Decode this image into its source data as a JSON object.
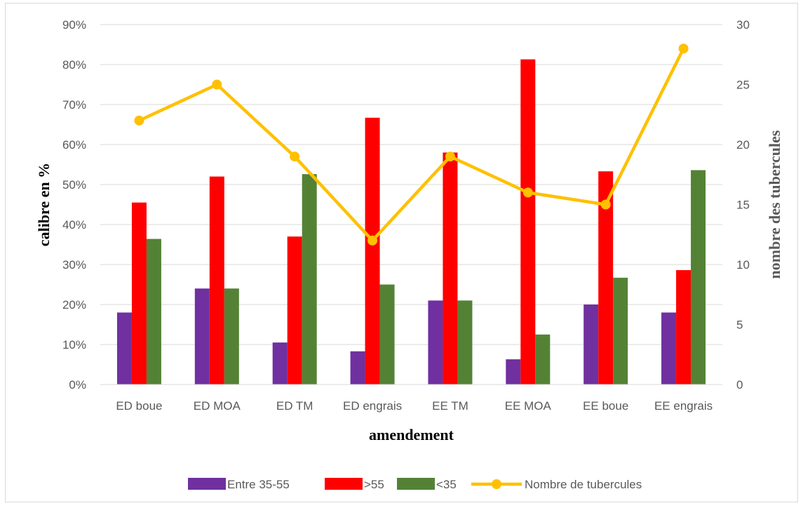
{
  "chart_data": {
    "type": "bar",
    "categories": [
      "ED boue",
      "ED MOA",
      "ED TM",
      "ED engrais",
      "EE TM",
      "EE MOA",
      "EE boue",
      "EE engrais"
    ],
    "series": [
      {
        "name": "Entre 35-55",
        "type": "bar",
        "axis": "left",
        "color": "#7030a0",
        "values": [
          0.18,
          0.24,
          0.105,
          0.083,
          0.21,
          0.063,
          0.2,
          0.18
        ]
      },
      {
        "name": ">55",
        "type": "bar",
        "axis": "left",
        "color": "#ff0000",
        "values": [
          0.455,
          0.52,
          0.37,
          0.667,
          0.58,
          0.813,
          0.533,
          0.286
        ]
      },
      {
        "name": "<35",
        "type": "bar",
        "axis": "left",
        "color": "#548235",
        "values": [
          0.364,
          0.24,
          0.526,
          0.25,
          0.21,
          0.125,
          0.267,
          0.536
        ]
      },
      {
        "name": "Nombre de tubercules",
        "type": "line",
        "axis": "right",
        "color": "#ffc000",
        "values": [
          22,
          25,
          19,
          12,
          19,
          16,
          15,
          28
        ]
      }
    ],
    "xlabel": "amendement",
    "ylabel": "calibre en %",
    "y2label": "nombre des tubercules",
    "ylim": [
      0,
      0.9
    ],
    "y2lim": [
      0,
      30
    ],
    "yticks": [
      "0%",
      "10%",
      "20%",
      "30%",
      "40%",
      "50%",
      "60%",
      "70%",
      "80%",
      "90%"
    ],
    "y2ticks": [
      "0",
      "5",
      "10",
      "15",
      "20",
      "25",
      "30"
    ],
    "grid": true,
    "legend": "bottom"
  }
}
